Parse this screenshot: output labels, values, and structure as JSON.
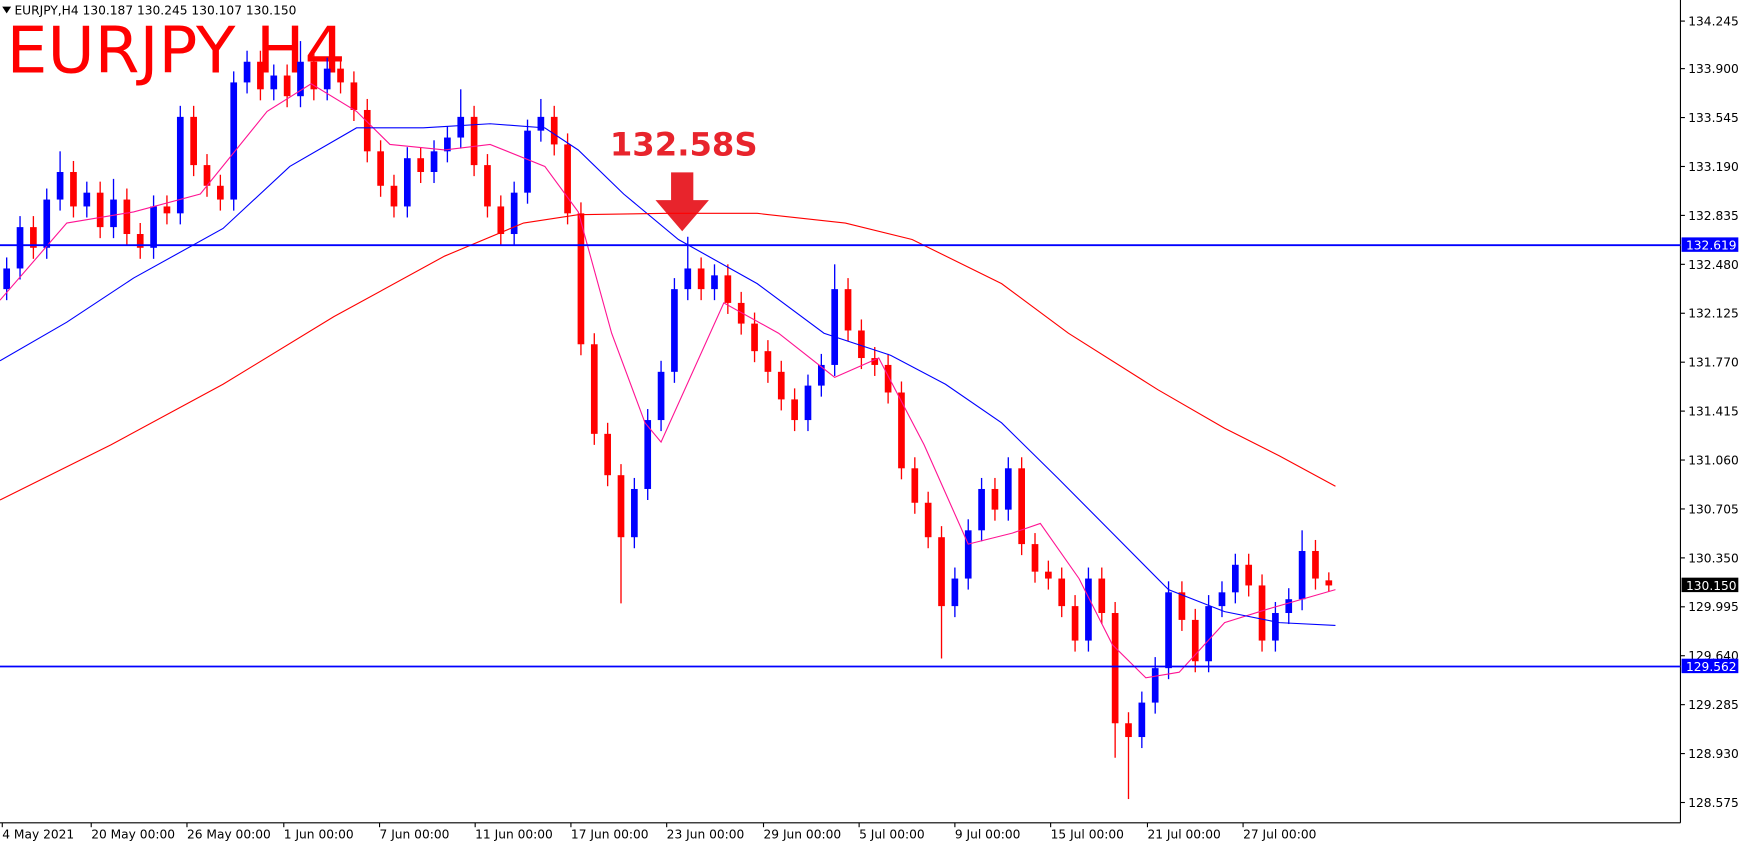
{
  "chart_data": {
    "type": "candlestick",
    "header": "EURJPY,H4  130.187 130.245 130.107 130.150",
    "title": "EURJPY H4",
    "annotation": "132.58S",
    "up_color": "#0000ff",
    "down_color": "#ff0000",
    "xlim": [
      -0.5,
      125.33
    ],
    "ylim": [
      128.428,
      134.398
    ],
    "xticks": [
      {
        "value": -0.33,
        "label": "4 May 2021"
      },
      {
        "value": 6.33,
        "label": "20 May 00:00"
      },
      {
        "value": 13.5,
        "label": "26 May 00:00"
      },
      {
        "value": 20.75,
        "label": "1 Jun 00:00"
      },
      {
        "value": 27.92,
        "label": "7 Jun 00:00"
      },
      {
        "value": 35.08,
        "label": "11 Jun 00:00"
      },
      {
        "value": 42.25,
        "label": "17 Jun 00:00"
      },
      {
        "value": 49.42,
        "label": "23 Jun 00:00"
      },
      {
        "value": 56.67,
        "label": "29 Jun 00:00"
      },
      {
        "value": 63.83,
        "label": "5 Jul 00:00"
      },
      {
        "value": 71,
        "label": "9 Jul 00:00"
      },
      {
        "value": 78.17,
        "label": "15 Jul 00:00"
      },
      {
        "value": 85.42,
        "label": "21 Jul 00:00"
      },
      {
        "value": 92.58,
        "label": "27 Jul 00:00"
      }
    ],
    "yticks": [
      134.245,
      {
        "value": 133.9,
        "label": "133.900"
      },
      133.545,
      {
        "value": 133.19,
        "label": "133.190"
      },
      132.835,
      {
        "value": 132.48,
        "label": "132.480"
      },
      132.125,
      {
        "value": 131.77,
        "label": "131.770"
      },
      131.415,
      {
        "value": 131.06,
        "label": "131.060"
      },
      130.705,
      {
        "value": 130.35,
        "label": "130.350"
      },
      129.995,
      {
        "value": 129.64,
        "label": "129.640"
      },
      129.285,
      {
        "value": 128.93,
        "label": "128.930"
      },
      128.575
    ],
    "open": [
      132.3,
      132.45,
      132.75,
      132.6,
      132.95,
      133.15,
      132.9,
      133,
      132.75,
      132.95,
      132.7,
      132.6,
      132.9,
      132.85,
      133.55,
      133.2,
      133.05,
      132.95,
      133.8,
      133.95,
      133.75,
      133.85,
      133.7,
      133.95,
      133.75,
      133.9,
      133.8,
      133.6,
      133.3,
      133.05,
      132.9,
      133.25,
      133.15,
      133.3,
      133.4,
      133.55,
      133.2,
      132.9,
      132.7,
      133,
      133.45,
      133.55,
      133.35,
      132.85,
      131.9,
      131.25,
      130.95,
      130.5,
      130.85,
      131.35,
      131.7,
      132.3,
      132.45,
      132.3,
      132.4,
      132.2,
      132.05,
      131.85,
      131.7,
      131.5,
      131.35,
      131.6,
      131.75,
      132.3,
      132,
      131.8,
      131.75,
      131.55,
      131,
      130.75,
      130.5,
      130,
      130.2,
      130.55,
      130.85,
      130.7,
      131,
      130.45,
      130.25,
      130.2,
      130,
      129.75,
      130.2,
      129.95,
      129.15,
      129.05,
      129.3,
      129.55,
      130.1,
      129.9,
      129.6,
      130,
      130.1,
      130.3,
      130.15,
      129.75,
      129.95,
      130.05,
      130.4,
      130.187
    ],
    "high": [
      132.53,
      132.83,
      132.83,
      133.03,
      133.3,
      133.23,
      133.08,
      133.08,
      133.1,
      133.03,
      132.78,
      132.98,
      132.98,
      133.63,
      133.63,
      133.28,
      133.13,
      133.88,
      134.03,
      134.03,
      133.93,
      133.93,
      134.1,
      134.03,
      133.98,
      133.98,
      133.88,
      133.68,
      133.38,
      133.13,
      133.33,
      133.33,
      133.38,
      133.48,
      133.75,
      133.63,
      133.28,
      132.98,
      133.08,
      133.53,
      133.68,
      133.63,
      133.43,
      132.93,
      131.98,
      131.33,
      131.03,
      130.93,
      131.43,
      131.78,
      132.38,
      132.68,
      132.53,
      132.48,
      132.48,
      132.28,
      132.13,
      131.93,
      131.78,
      131.58,
      131.68,
      131.83,
      132.48,
      132.38,
      132.08,
      131.88,
      131.83,
      131.63,
      131.08,
      130.83,
      130.58,
      130.28,
      130.63,
      130.93,
      130.93,
      131.08,
      131.08,
      130.53,
      130.33,
      130.28,
      130.08,
      130.28,
      130.28,
      130.03,
      129.23,
      129.38,
      129.63,
      130.18,
      130.18,
      129.98,
      130.08,
      130.18,
      130.38,
      130.38,
      130.23,
      130.03,
      130.13,
      130.55,
      130.48,
      130.245
    ],
    "low": [
      132.22,
      132.37,
      132.52,
      132.52,
      132.87,
      132.82,
      132.82,
      132.67,
      132.67,
      132.62,
      132.52,
      132.52,
      132.77,
      132.77,
      133.12,
      132.97,
      132.87,
      132.87,
      133.72,
      133.67,
      133.67,
      133.62,
      133.62,
      133.67,
      133.67,
      133.72,
      133.52,
      133.22,
      132.97,
      132.82,
      132.82,
      133.07,
      133.07,
      133.22,
      133.32,
      133.12,
      132.82,
      132.62,
      132.62,
      132.92,
      133.37,
      133.27,
      132.77,
      131.82,
      131.17,
      130.87,
      130.02,
      130.42,
      130.77,
      131.27,
      131.62,
      132.22,
      132.22,
      132.22,
      132.12,
      131.97,
      131.77,
      131.62,
      131.42,
      131.27,
      131.27,
      131.52,
      131.67,
      131.92,
      131.72,
      131.67,
      131.47,
      130.92,
      130.67,
      130.42,
      129.62,
      129.92,
      130.12,
      130.47,
      130.62,
      130.62,
      130.37,
      130.17,
      130.12,
      129.92,
      129.67,
      129.67,
      129.87,
      128.9,
      128.6,
      128.97,
      129.22,
      129.47,
      129.82,
      129.52,
      129.52,
      129.92,
      130.02,
      130.07,
      129.67,
      129.67,
      129.87,
      129.97,
      130.12,
      130.107
    ],
    "close": [
      132.45,
      132.75,
      132.6,
      132.95,
      133.15,
      132.9,
      133,
      132.75,
      132.95,
      132.7,
      132.6,
      132.9,
      132.85,
      133.55,
      133.2,
      133.05,
      132.95,
      133.8,
      133.95,
      133.75,
      133.85,
      133.7,
      133.95,
      133.75,
      133.9,
      133.8,
      133.6,
      133.3,
      133.05,
      132.9,
      133.25,
      133.15,
      133.3,
      133.4,
      133.55,
      133.2,
      132.9,
      132.7,
      133,
      133.45,
      133.55,
      133.35,
      132.85,
      131.9,
      131.25,
      130.95,
      130.5,
      130.85,
      131.35,
      131.7,
      132.3,
      132.45,
      132.3,
      132.4,
      132.2,
      132.05,
      131.85,
      131.7,
      131.5,
      131.35,
      131.6,
      131.75,
      132.3,
      132,
      131.8,
      131.75,
      131.55,
      131,
      130.75,
      130.5,
      130,
      130.2,
      130.55,
      130.85,
      130.7,
      131,
      130.45,
      130.25,
      130.2,
      130,
      129.75,
      130.2,
      129.95,
      129.15,
      129.05,
      129.3,
      129.55,
      130.1,
      129.9,
      129.6,
      130,
      130.1,
      130.3,
      130.15,
      129.75,
      129.95,
      130.05,
      130.4,
      130.2,
      130.15
    ],
    "lines": [
      {
        "color": "#ff1493",
        "x": [
          -0.5,
          4.5,
          9.5,
          14.5,
          19.5,
          22.8,
          26.2,
          28.7,
          32.8,
          36.2,
          40.3,
          42.8,
          45.3,
          47.8,
          49,
          53.7,
          57.8,
          62,
          65.3,
          68.7,
          72,
          75.3,
          77.4,
          80.3,
          82.8,
          85.3,
          87.8,
          91.2,
          94.5,
          99.5
        ],
        "values": [
          132.22,
          132.78,
          132.86,
          132.99,
          133.59,
          133.79,
          133.59,
          133.35,
          133.31,
          133.35,
          133.19,
          132.86,
          131.98,
          131.33,
          131.19,
          132.2,
          131.98,
          131.66,
          131.8,
          131.17,
          130.45,
          130.53,
          130.6,
          130.2,
          129.72,
          129.48,
          129.52,
          129.88,
          129.98,
          130.12
        ]
      },
      {
        "color": "#0000ff",
        "x": [
          -0.5,
          4.5,
          9.5,
          16.2,
          21.2,
          26.2,
          31.2,
          36.2,
          40.3,
          42.8,
          46.2,
          50.3,
          56.2,
          61.2,
          66.2,
          70.3,
          74.5,
          78.7,
          82.8,
          87,
          91.2,
          95.3,
          99.5
        ],
        "values": [
          131.78,
          132.06,
          132.38,
          132.74,
          133.19,
          133.47,
          133.47,
          133.5,
          133.47,
          133.31,
          132.99,
          132.66,
          132.34,
          131.98,
          131.82,
          131.61,
          131.33,
          130.93,
          130.53,
          130.12,
          129.96,
          129.88,
          129.86
        ]
      },
      {
        "color": "#ff0000",
        "x": [
          -0.5,
          7.8,
          16.2,
          24.5,
          32.8,
          38.7,
          42.8,
          49.5,
          56.2,
          62.8,
          67.8,
          74.5,
          79.5,
          86.2,
          91.2,
          95.3,
          99.5
        ],
        "values": [
          130.77,
          131.17,
          131.61,
          132.1,
          132.54,
          132.78,
          132.84,
          132.85,
          132.85,
          132.78,
          132.66,
          132.34,
          131.98,
          131.57,
          131.29,
          131.09,
          130.87
        ]
      }
    ],
    "levels": [
      132.619,
      129.562
    ],
    "level_color": "#0000ff",
    "last_price": {
      "value": 130.15,
      "label": "130.150"
    }
  }
}
